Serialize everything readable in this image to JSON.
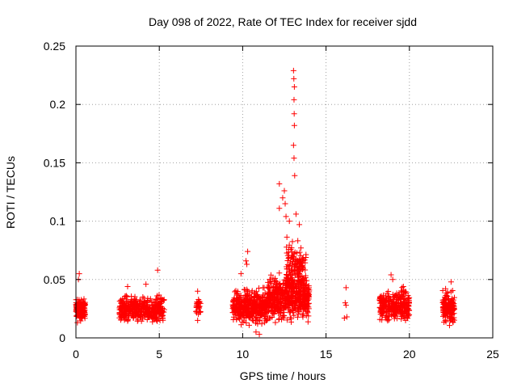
{
  "chart_data": {
    "type": "scatter",
    "title": "Day 098 of 2022, Rate Of TEC Index for receiver sjdd",
    "xlabel": "GPS time / hours",
    "ylabel": "ROTI / TECUs",
    "xlim": [
      0,
      25
    ],
    "ylim": [
      0,
      0.25
    ],
    "xticks": [
      0,
      5,
      10,
      15,
      20,
      25
    ],
    "xtick_labels": [
      "0",
      "5",
      "10",
      "15",
      "20",
      "25"
    ],
    "yticks": [
      0,
      0.05,
      0.1,
      0.15,
      0.2,
      0.25
    ],
    "ytick_labels": [
      "0",
      "0.05",
      "0.1",
      "0.15",
      "0.2",
      "0.25"
    ],
    "grid": true,
    "marker": "+",
    "color": "#ff0000",
    "series": [
      {
        "name": "ROTI",
        "clusters": [
          {
            "x_range": [
              0.0,
              0.55
            ],
            "y_range": [
              0.012,
              0.038
            ],
            "count": 140
          },
          {
            "x_range": [
              2.6,
              5.3
            ],
            "y_range": [
              0.01,
              0.04
            ],
            "count": 420
          },
          {
            "x_range": [
              7.2,
              7.5
            ],
            "y_range": [
              0.018,
              0.035
            ],
            "count": 28
          },
          {
            "x_range": [
              9.4,
              11.5
            ],
            "y_range": [
              0.008,
              0.045
            ],
            "count": 420
          },
          {
            "x_range": [
              11.5,
              14.0
            ],
            "y_range": [
              0.008,
              0.06
            ],
            "count": 520
          },
          {
            "x_range": [
              12.6,
              13.8
            ],
            "y_range": [
              0.03,
              0.09
            ],
            "count": 160
          },
          {
            "x_range": [
              18.2,
              20.0
            ],
            "y_range": [
              0.01,
              0.045
            ],
            "count": 300
          },
          {
            "x_range": [
              22.0,
              22.7
            ],
            "y_range": [
              0.008,
              0.044
            ],
            "count": 160
          }
        ],
        "points": [
          {
            "x": 13.05,
            "y": 0.229
          },
          {
            "x": 13.07,
            "y": 0.222
          },
          {
            "x": 13.1,
            "y": 0.215
          },
          {
            "x": 13.08,
            "y": 0.204
          },
          {
            "x": 13.09,
            "y": 0.192
          },
          {
            "x": 13.1,
            "y": 0.182
          },
          {
            "x": 13.05,
            "y": 0.165
          },
          {
            "x": 13.08,
            "y": 0.154
          },
          {
            "x": 13.12,
            "y": 0.139
          },
          {
            "x": 12.2,
            "y": 0.132
          },
          {
            "x": 12.5,
            "y": 0.126
          },
          {
            "x": 12.4,
            "y": 0.12
          },
          {
            "x": 12.55,
            "y": 0.115
          },
          {
            "x": 12.6,
            "y": 0.104
          },
          {
            "x": 12.2,
            "y": 0.111
          },
          {
            "x": 13.2,
            "y": 0.106
          },
          {
            "x": 13.4,
            "y": 0.097
          },
          {
            "x": 12.8,
            "y": 0.1
          },
          {
            "x": 10.3,
            "y": 0.074
          },
          {
            "x": 10.25,
            "y": 0.063
          },
          {
            "x": 10.2,
            "y": 0.066
          },
          {
            "x": 9.9,
            "y": 0.055
          },
          {
            "x": 0.2,
            "y": 0.055
          },
          {
            "x": 0.15,
            "y": 0.05
          },
          {
            "x": 4.9,
            "y": 0.058
          },
          {
            "x": 16.2,
            "y": 0.043
          },
          {
            "x": 16.15,
            "y": 0.03
          },
          {
            "x": 16.2,
            "y": 0.028
          },
          {
            "x": 16.25,
            "y": 0.018
          },
          {
            "x": 16.1,
            "y": 0.017
          },
          {
            "x": 18.9,
            "y": 0.054
          },
          {
            "x": 19.0,
            "y": 0.05
          },
          {
            "x": 22.5,
            "y": 0.048
          },
          {
            "x": 7.3,
            "y": 0.04
          },
          {
            "x": 7.3,
            "y": 0.015
          },
          {
            "x": 4.2,
            "y": 0.046
          },
          {
            "x": 3.1,
            "y": 0.044
          },
          {
            "x": 10.8,
            "y": 0.005
          },
          {
            "x": 11.0,
            "y": 0.003
          }
        ]
      }
    ]
  }
}
